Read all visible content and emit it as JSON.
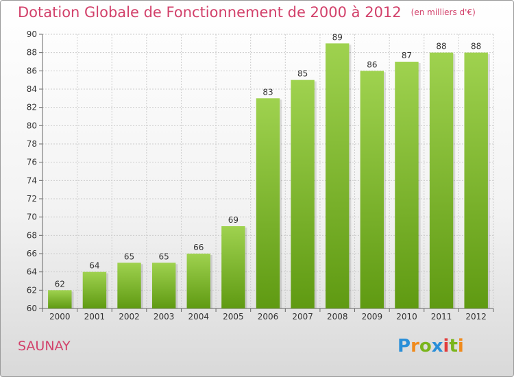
{
  "title": "Dotation Globale de Fonctionnement de 2000 à 2012",
  "unit_note": "(en milliers d'€)",
  "place_name": "SAUNAY",
  "logo": {
    "text": "Proxiti",
    "letters": [
      {
        "ch": "P",
        "color": "#2a8fd8"
      },
      {
        "ch": "r",
        "color": "#f08a1c"
      },
      {
        "ch": "o",
        "color": "#7ab51d"
      },
      {
        "ch": "x",
        "color": "#2a8fd8"
      },
      {
        "ch": "i",
        "color": "#e23b3b"
      },
      {
        "ch": "t",
        "color": "#7ab51d"
      },
      {
        "ch": "i",
        "color": "#f08a1c"
      }
    ]
  },
  "chart_data": {
    "type": "bar",
    "title": "Dotation Globale de Fonctionnement de 2000 à 2012",
    "categories": [
      "2000",
      "2001",
      "2002",
      "2003",
      "2004",
      "2005",
      "2006",
      "2007",
      "2008",
      "2009",
      "2010",
      "2011",
      "2012"
    ],
    "values": [
      62,
      64,
      65,
      65,
      66,
      69,
      83,
      85,
      89,
      86,
      87,
      88,
      88
    ],
    "ylim": [
      60,
      90
    ],
    "yticks": [
      60,
      62,
      64,
      66,
      68,
      70,
      72,
      74,
      76,
      78,
      80,
      82,
      84,
      86,
      88,
      90
    ],
    "grid": true,
    "colors": {
      "bar_top": "#9fd24f",
      "bar_bottom": "#5f9a12",
      "grid": "#cccccc",
      "text": "#333333"
    }
  }
}
